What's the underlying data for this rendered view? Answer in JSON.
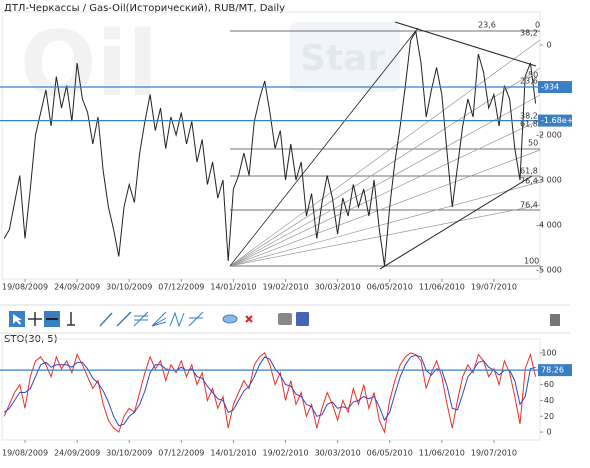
{
  "chart_data": [
    {
      "type": "line",
      "title": "ДТЛ-Черкассы / Gas-Oil(Исторический), RUB/MT, Daily",
      "watermark": [
        "Oil",
        "Star"
      ],
      "categories": [
        null,
        null,
        null,
        null,
        "19/08/2009",
        null,
        null,
        null,
        null,
        null,
        null,
        null,
        null,
        null,
        "24/09/2009",
        null,
        null,
        null,
        null,
        null,
        null,
        null,
        null,
        null,
        "30/10/2009",
        null,
        null,
        null,
        null,
        null,
        null,
        null,
        null,
        null,
        "07/12/2009",
        null,
        null,
        null,
        null,
        null,
        null,
        null,
        null,
        null,
        "14/01/2010",
        null,
        null,
        null,
        null,
        null,
        null,
        null,
        null,
        null,
        "19/02/2010",
        null,
        null,
        null,
        null,
        null,
        null,
        null,
        null,
        null,
        "30/03/2010",
        null,
        null,
        null,
        null,
        null,
        null,
        null,
        null,
        null,
        "06/05/2010",
        null,
        null,
        null,
        null,
        null,
        null,
        null,
        null,
        null,
        "11/06/2010",
        null,
        null,
        null,
        null,
        null,
        null,
        null,
        null,
        null,
        "19/07/2010",
        null,
        null,
        null,
        null,
        null,
        null,
        null,
        null
      ],
      "values": [
        -4300,
        -4100,
        -3500,
        -2900,
        -4300,
        -3200,
        -2000,
        -1500,
        -1000,
        -1800,
        -700,
        -1400,
        -900,
        -1700,
        -400,
        -1200,
        -1500,
        -2200,
        -1600,
        -2800,
        -3600,
        -4100,
        -4700,
        -3600,
        -3100,
        -3500,
        -2400,
        -1700,
        -1100,
        -1900,
        -1400,
        -2300,
        -1600,
        -2000,
        -1500,
        -2200,
        -1700,
        -2600,
        -2100,
        -3100,
        -2600,
        -3400,
        -3000,
        -4800,
        -3200,
        -2900,
        -2400,
        -2900,
        -1700,
        -1200,
        -800,
        -1500,
        -2300,
        -1900,
        -3000,
        -2200,
        -3000,
        -2600,
        -3800,
        -3300,
        -4300,
        -3500,
        -2900,
        -3400,
        -4200,
        -3400,
        -3800,
        -3100,
        -3600,
        -3200,
        -3800,
        -3000,
        -4100,
        -4900,
        -3600,
        -2600,
        -1800,
        -900,
        100,
        300,
        -400,
        -1600,
        -1000,
        -500,
        -1100,
        -2400,
        -3600,
        -2700,
        -1800,
        -1200,
        -1600,
        -200,
        -600,
        -1400,
        -1100,
        -1800,
        -900,
        -1200,
        -2300,
        -3000,
        -700,
        -400,
        -1300
      ],
      "color": "#222222",
      "ylim": [
        -5200,
        600
      ],
      "yticks": [
        0,
        {
          "value": -2000,
          "label": "-2 000"
        },
        {
          "value": -3000,
          "label": "-3 000"
        },
        {
          "value": -4000,
          "label": "-4 000"
        },
        {
          "value": -5000,
          "label": "-5 000"
        }
      ],
      "hlines": [
        {
          "value": -934,
          "label": "-934"
        },
        {
          "value": -1680,
          "label": "-1.68e+3"
        }
      ],
      "hline_color": "#3a7fc4",
      "fib_labels": [
        "23,6",
        "0",
        "38,2",
        "50",
        "23,6",
        "38,2",
        "61,8",
        "50",
        "61,8",
        "76,4",
        "76,4",
        "100"
      ]
    },
    {
      "type": "line",
      "title": "STO(30, 5)",
      "categories": [
        null,
        null,
        null,
        null,
        "19/08/2009",
        null,
        null,
        null,
        null,
        null,
        null,
        null,
        null,
        null,
        "24/09/2009",
        null,
        null,
        null,
        null,
        null,
        null,
        null,
        null,
        null,
        "30/10/2009",
        null,
        null,
        null,
        null,
        null,
        null,
        null,
        null,
        null,
        "07/12/2009",
        null,
        null,
        null,
        null,
        null,
        null,
        null,
        null,
        null,
        "14/01/2010",
        null,
        null,
        null,
        null,
        null,
        null,
        null,
        null,
        null,
        "19/02/2010",
        null,
        null,
        null,
        null,
        null,
        null,
        null,
        null,
        null,
        "30/03/2010",
        null,
        null,
        null,
        null,
        null,
        null,
        null,
        null,
        null,
        "06/05/2010",
        null,
        null,
        null,
        null,
        null,
        null,
        null,
        null,
        null,
        "11/06/2010",
        null,
        null,
        null,
        null,
        null,
        null,
        null,
        null,
        null,
        "19/07/2010",
        null,
        null,
        null,
        null,
        null,
        null,
        null,
        null
      ],
      "series": [
        {
          "color": "#e8302a",
          "values": [
            20,
            35,
            50,
            60,
            30,
            70,
            90,
            95,
            85,
            70,
            95,
            80,
            90,
            75,
            98,
            85,
            70,
            55,
            65,
            35,
            15,
            5,
            0,
            20,
            30,
            25,
            50,
            75,
            95,
            80,
            90,
            65,
            85,
            75,
            90,
            70,
            85,
            60,
            75,
            40,
            55,
            30,
            45,
            5,
            35,
            50,
            65,
            55,
            85,
            95,
            100,
            85,
            60,
            75,
            40,
            65,
            35,
            50,
            20,
            35,
            5,
            30,
            50,
            35,
            15,
            40,
            25,
            55,
            35,
            60,
            30,
            50,
            15,
            0,
            40,
            65,
            85,
            95,
            100,
            98,
            90,
            55,
            75,
            90,
            70,
            35,
            5,
            40,
            70,
            85,
            75,
            98,
            90,
            70,
            80,
            60,
            90,
            75,
            45,
            10,
            80,
            98,
            70
          ]
        },
        {
          "color": "#3346c8",
          "values": [
            25,
            30,
            40,
            50,
            50,
            55,
            70,
            85,
            88,
            82,
            85,
            85,
            85,
            82,
            88,
            88,
            80,
            68,
            62,
            52,
            38,
            20,
            8,
            10,
            20,
            25,
            35,
            52,
            75,
            85,
            85,
            80,
            78,
            78,
            82,
            78,
            80,
            70,
            68,
            58,
            50,
            42,
            40,
            25,
            28,
            40,
            52,
            58,
            70,
            85,
            95,
            92,
            80,
            72,
            60,
            58,
            48,
            45,
            35,
            32,
            20,
            22,
            35,
            38,
            30,
            32,
            30,
            38,
            40,
            45,
            42,
            45,
            32,
            15,
            25,
            48,
            70,
            85,
            95,
            97,
            95,
            78,
            72,
            80,
            78,
            58,
            30,
            28,
            48,
            70,
            78,
            88,
            90,
            82,
            78,
            72,
            78,
            78,
            65,
            35,
            45,
            80,
            82
          ]
        }
      ],
      "ylim": [
        -10,
        110
      ],
      "yticks": [
        0,
        20,
        40,
        60,
        80,
        100
      ],
      "hlines": [
        {
          "value": 78.26,
          "label": "78.26"
        }
      ],
      "hline_color": "#3a7fc4"
    }
  ]
}
